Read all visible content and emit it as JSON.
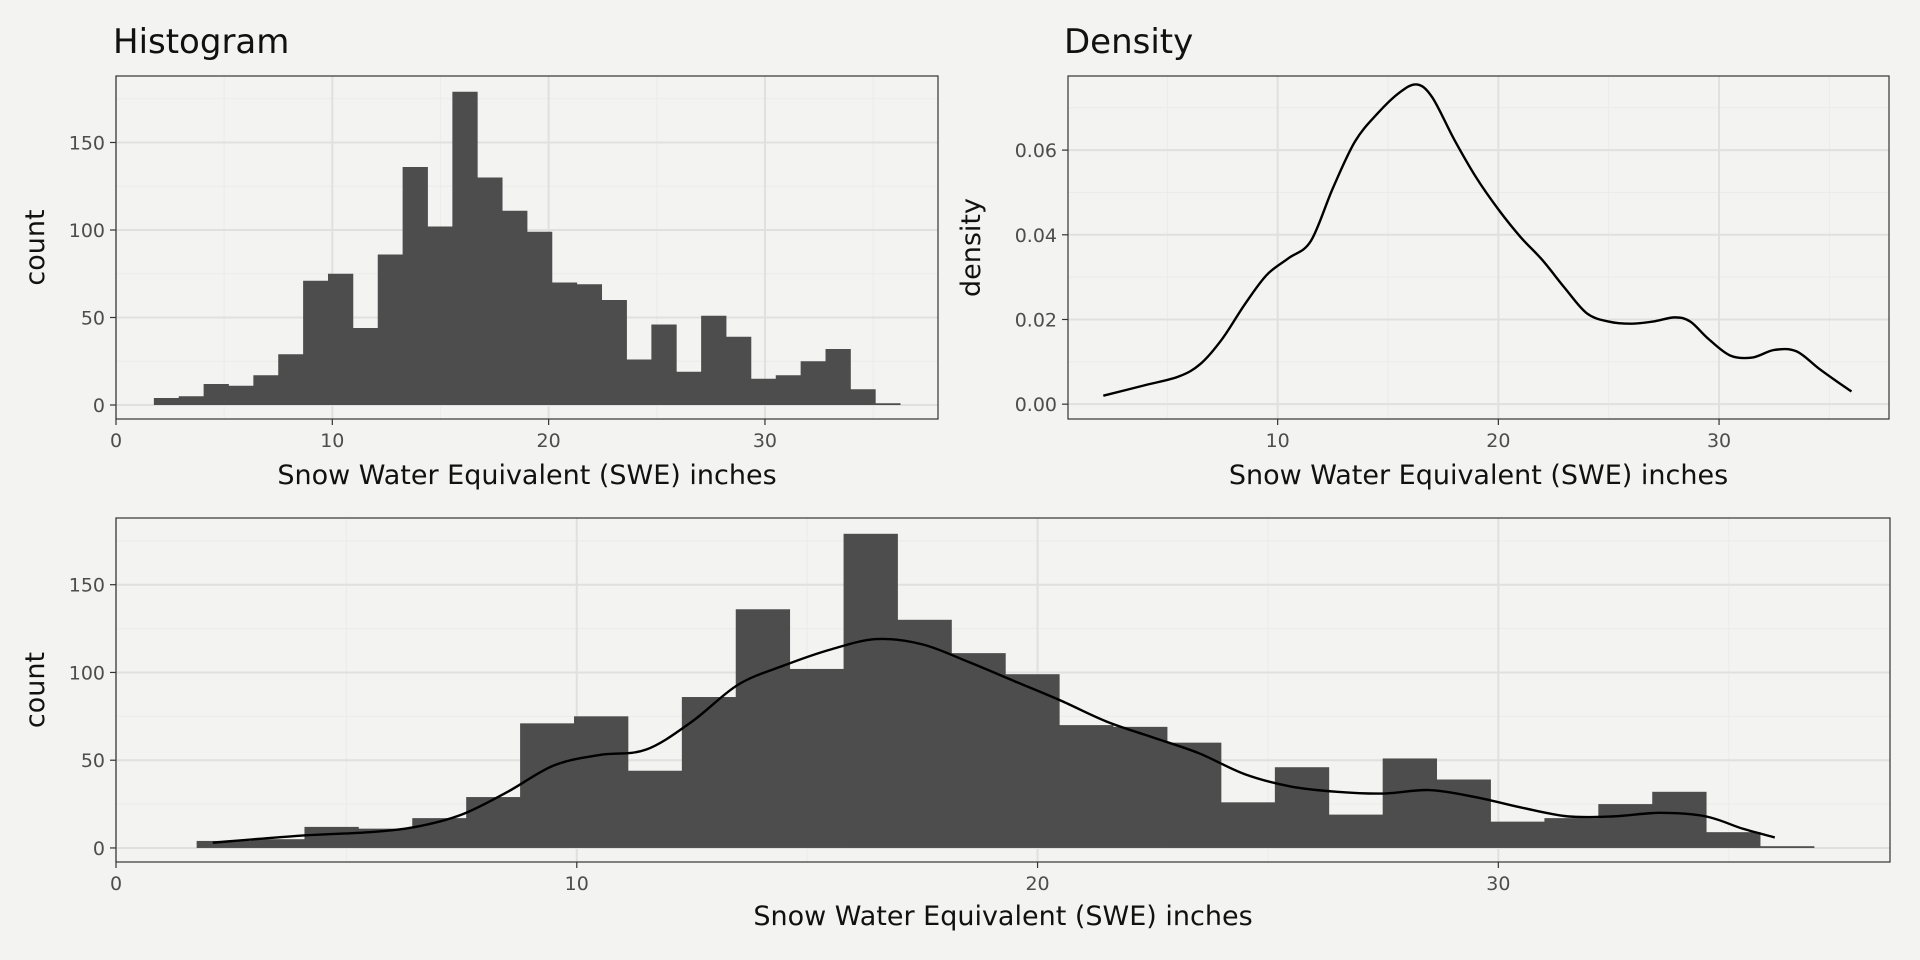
{
  "chart_data": [
    {
      "id": "histogram",
      "type": "bar",
      "title": "Histogram",
      "xlabel": "Snow Water Equivalent (SWE) inches",
      "ylabel": "count",
      "xlim": [
        0,
        38
      ],
      "ylim": [
        -8,
        188
      ],
      "xticks": [
        0,
        10,
        20,
        30
      ],
      "yticks": [
        0,
        50,
        100,
        150
      ],
      "grid": true,
      "bin_start": 1.75,
      "bin_width": 1.15,
      "values": [
        4,
        5,
        12,
        11,
        17,
        29,
        71,
        75,
        44,
        86,
        136,
        102,
        179,
        130,
        111,
        99,
        70,
        69,
        60,
        26,
        46,
        19,
        51,
        39,
        15,
        17,
        25,
        32,
        9,
        1
      ]
    },
    {
      "id": "density",
      "type": "line",
      "title": "Density",
      "xlabel": "Snow Water Equivalent (SWE) inches",
      "ylabel": "density",
      "xlim": [
        0.5,
        37.7
      ],
      "ylim": [
        -0.0035,
        0.0775
      ],
      "xticks": [
        10,
        20,
        30
      ],
      "yticks": [
        0.0,
        0.02,
        0.04,
        0.06
      ],
      "ytick_labels": [
        "0.00",
        "0.02",
        "0.04",
        "0.06"
      ],
      "grid": true,
      "x": [
        2.1,
        4,
        5.5,
        6.5,
        7.5,
        8.5,
        9.5,
        10.5,
        11.5,
        12.5,
        13.5,
        14.5,
        15.5,
        16.3,
        17,
        18,
        19,
        20,
        21,
        22,
        23,
        24,
        25,
        26,
        27,
        28,
        28.7,
        29.5,
        30.5,
        31.5,
        32.5,
        33.5,
        34.5,
        35.3,
        36
      ],
      "y": [
        0.002,
        0.0045,
        0.0065,
        0.0095,
        0.0155,
        0.0235,
        0.0305,
        0.0345,
        0.0385,
        0.051,
        0.062,
        0.0685,
        0.0735,
        0.0755,
        0.0725,
        0.0625,
        0.0535,
        0.046,
        0.0395,
        0.034,
        0.0275,
        0.0215,
        0.0195,
        0.019,
        0.0195,
        0.0205,
        0.0195,
        0.0155,
        0.0115,
        0.011,
        0.0128,
        0.0125,
        0.0085,
        0.0055,
        0.003
      ]
    },
    {
      "id": "histogram-density",
      "type": "bar",
      "title": "",
      "xlabel": "Snow Water Equivalent (SWE) inches",
      "ylabel": "count",
      "xlim": [
        0,
        38.5
      ],
      "ylim": [
        -8,
        188
      ],
      "xticks": [
        0,
        10,
        20,
        30
      ],
      "yticks": [
        0,
        50,
        100,
        150
      ],
      "grid": true,
      "bin_start": 1.75,
      "bin_width": 1.17,
      "values": [
        4,
        5,
        12,
        11,
        17,
        29,
        71,
        75,
        44,
        86,
        136,
        102,
        179,
        130,
        111,
        99,
        70,
        69,
        60,
        26,
        46,
        19,
        51,
        39,
        15,
        17,
        25,
        32,
        9,
        1
      ],
      "overlay_density": {
        "x": [
          2.1,
          4,
          5.5,
          6.5,
          7.5,
          8.5,
          9.5,
          10.5,
          11.5,
          12.5,
          13.5,
          14.5,
          15.5,
          16.5,
          17.5,
          18.5,
          19.5,
          20.5,
          21.5,
          22.5,
          23.5,
          24.5,
          25.5,
          26.5,
          27.5,
          28.5,
          29.5,
          30.5,
          31.5,
          32.5,
          33.5,
          34.5,
          35.3,
          36
        ],
        "y": [
          3,
          7,
          9,
          12,
          19,
          32,
          47,
          53,
          56,
          72,
          93,
          104,
          113,
          119,
          116,
          106,
          95,
          84,
          72,
          63,
          54,
          42,
          35,
          32,
          31,
          33,
          29,
          23,
          18,
          18,
          20,
          18,
          11,
          6
        ]
      }
    }
  ]
}
